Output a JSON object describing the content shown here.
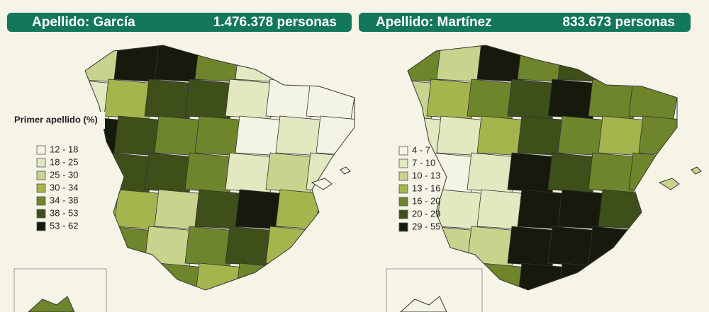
{
  "panels": [
    {
      "title": "Apellido:  García",
      "count": "1.476.378 personas",
      "legend": {
        "title": "Primer apellido (%)",
        "items": [
          {
            "label": "12 - 18",
            "color": "#f4f4e4"
          },
          {
            "label": "18 - 25",
            "color": "#e2e8bf"
          },
          {
            "label": "25 - 30",
            "color": "#c8d48e"
          },
          {
            "label": "30 - 34",
            "color": "#a4b54e"
          },
          {
            "label": "34 - 38",
            "color": "#6f852c"
          },
          {
            "label": "38 - 53",
            "color": "#3f4f1a"
          },
          {
            "label": "53 - 62",
            "color": "#161a0c"
          }
        ]
      }
    },
    {
      "title": "Apellido: Martínez",
      "count": "833.673 personas",
      "legend": {
        "items": [
          {
            "label": "4 - 7",
            "color": "#f4f4e4"
          },
          {
            "label": "7 - 10",
            "color": "#e2e8bf"
          },
          {
            "label": "10 - 13",
            "color": "#c8d48e"
          },
          {
            "label": "13 - 16",
            "color": "#a4b54e"
          },
          {
            "label": "16 - 20",
            "color": "#6f852c"
          },
          {
            "label": "20 - 29",
            "color": "#3f4f1a"
          },
          {
            "label": "29 - 55",
            "color": "#161a0c"
          }
        ]
      }
    }
  ]
}
